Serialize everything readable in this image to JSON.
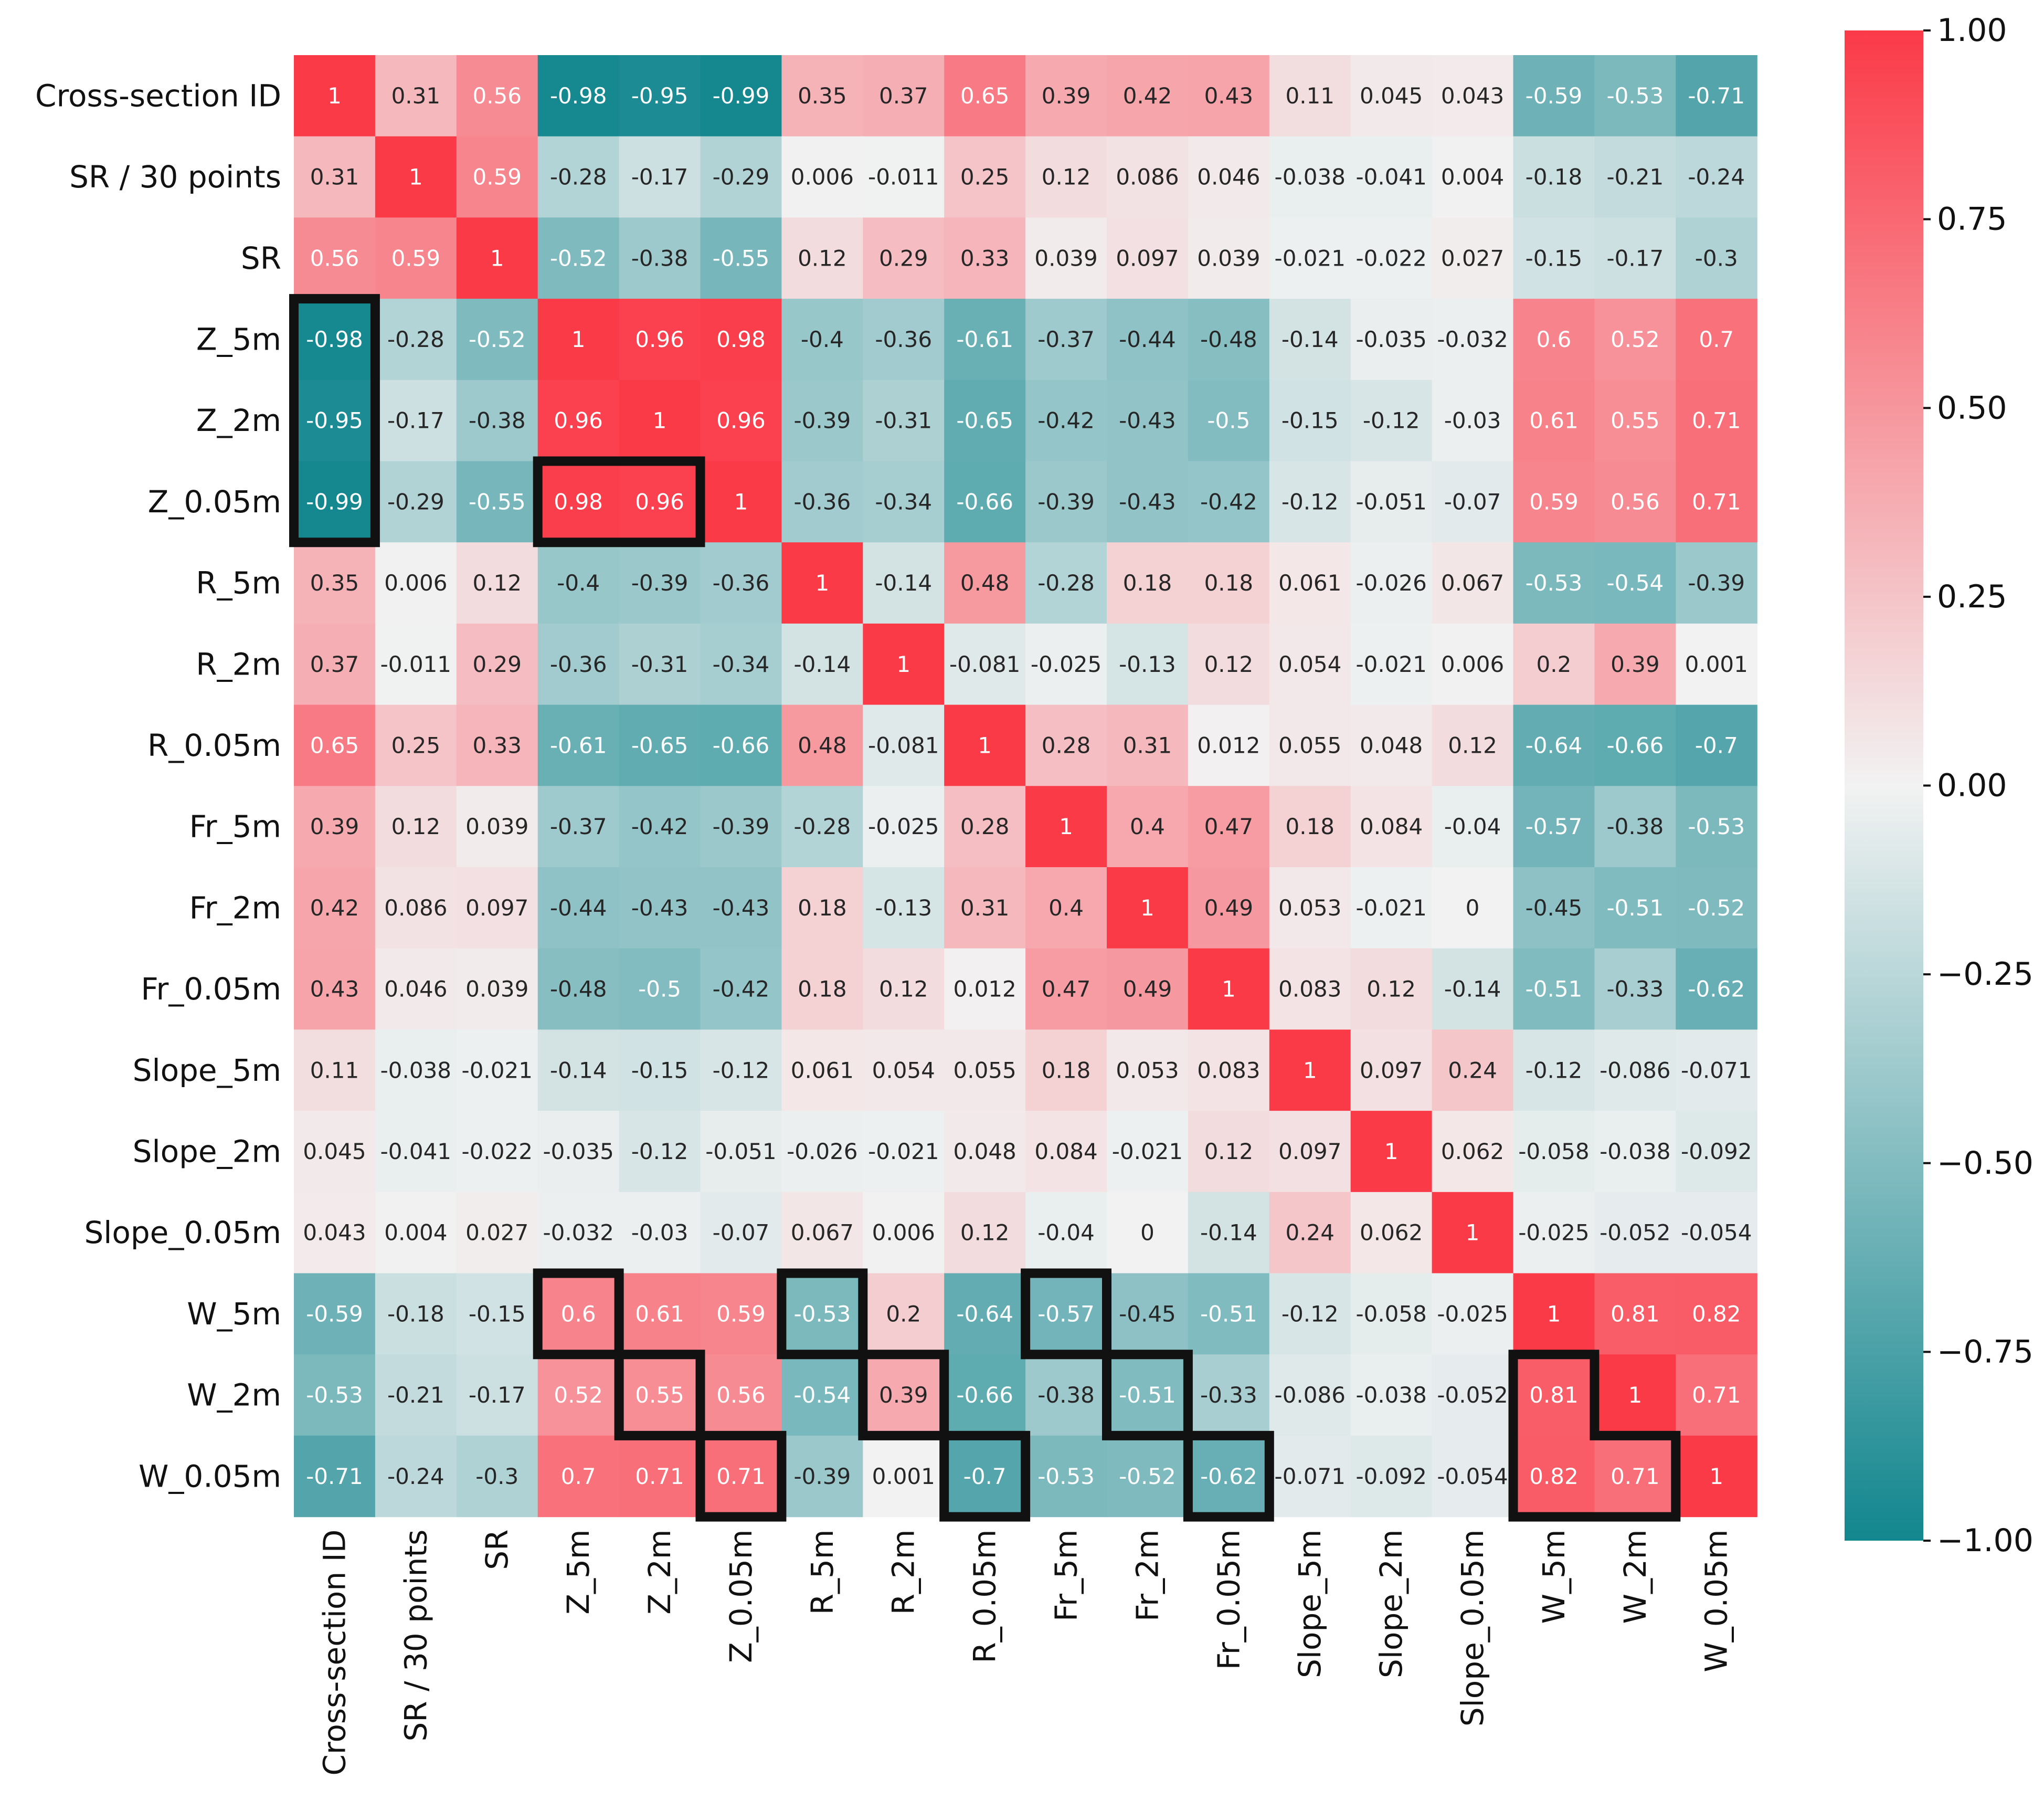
{
  "chart_data": {
    "type": "heatmap",
    "title": "",
    "labels": [
      "Cross-section ID",
      "SR / 30 points",
      "SR",
      "Z_5m",
      "Z_2m",
      "Z_0.05m",
      "R_5m",
      "R_2m",
      "R_0.05m",
      "Fr_5m",
      "Fr_2m",
      "Fr_0.05m",
      "Slope_5m",
      "Slope_2m",
      "Slope_0.05m",
      "W_5m",
      "W_2m",
      "W_0.05m"
    ],
    "value_labels": [
      [
        "1",
        "0.31",
        "0.56",
        "-0.98",
        "-0.95",
        "-0.99",
        "0.35",
        "0.37",
        "0.65",
        "0.39",
        "0.42",
        "0.43",
        "0.11",
        "0.045",
        "0.043",
        "-0.59",
        "-0.53",
        "-0.71"
      ],
      [
        "0.31",
        "1",
        "0.59",
        "-0.28",
        "-0.17",
        "-0.29",
        "0.006",
        "-0.011",
        "0.25",
        "0.12",
        "0.086",
        "0.046",
        "-0.038",
        "-0.041",
        "0.004",
        "-0.18",
        "-0.21",
        "-0.24"
      ],
      [
        "0.56",
        "0.59",
        "1",
        "-0.52",
        "-0.38",
        "-0.55",
        "0.12",
        "0.29",
        "0.33",
        "0.039",
        "0.097",
        "0.039",
        "-0.021",
        "-0.022",
        "0.027",
        "-0.15",
        "-0.17",
        "-0.3"
      ],
      [
        "-0.98",
        "-0.28",
        "-0.52",
        "1",
        "0.96",
        "0.98",
        "-0.4",
        "-0.36",
        "-0.61",
        "-0.37",
        "-0.44",
        "-0.48",
        "-0.14",
        "-0.035",
        "-0.032",
        "0.6",
        "0.52",
        "0.7"
      ],
      [
        "-0.95",
        "-0.17",
        "-0.38",
        "0.96",
        "1",
        "0.96",
        "-0.39",
        "-0.31",
        "-0.65",
        "-0.42",
        "-0.43",
        "-0.5",
        "-0.15",
        "-0.12",
        "-0.03",
        "0.61",
        "0.55",
        "0.71"
      ],
      [
        "-0.99",
        "-0.29",
        "-0.55",
        "0.98",
        "0.96",
        "1",
        "-0.36",
        "-0.34",
        "-0.66",
        "-0.39",
        "-0.43",
        "-0.42",
        "-0.12",
        "-0.051",
        "-0.07",
        "0.59",
        "0.56",
        "0.71"
      ],
      [
        "0.35",
        "0.006",
        "0.12",
        "-0.4",
        "-0.39",
        "-0.36",
        "1",
        "-0.14",
        "0.48",
        "-0.28",
        "0.18",
        "0.18",
        "0.061",
        "-0.026",
        "0.067",
        "-0.53",
        "-0.54",
        "-0.39"
      ],
      [
        "0.37",
        "-0.011",
        "0.29",
        "-0.36",
        "-0.31",
        "-0.34",
        "-0.14",
        "1",
        "-0.081",
        "-0.025",
        "-0.13",
        "0.12",
        "0.054",
        "-0.021",
        "0.006",
        "0.2",
        "0.39",
        "0.001"
      ],
      [
        "0.65",
        "0.25",
        "0.33",
        "-0.61",
        "-0.65",
        "-0.66",
        "0.48",
        "-0.081",
        "1",
        "0.28",
        "0.31",
        "0.012",
        "0.055",
        "0.048",
        "0.12",
        "-0.64",
        "-0.66",
        "-0.7"
      ],
      [
        "0.39",
        "0.12",
        "0.039",
        "-0.37",
        "-0.42",
        "-0.39",
        "-0.28",
        "-0.025",
        "0.28",
        "1",
        "0.4",
        "0.47",
        "0.18",
        "0.084",
        "-0.04",
        "-0.57",
        "-0.38",
        "-0.53"
      ],
      [
        "0.42",
        "0.086",
        "0.097",
        "-0.44",
        "-0.43",
        "-0.43",
        "0.18",
        "-0.13",
        "0.31",
        "0.4",
        "1",
        "0.49",
        "0.053",
        "-0.021",
        "0",
        "-0.45",
        "-0.51",
        "-0.52"
      ],
      [
        "0.43",
        "0.046",
        "0.039",
        "-0.48",
        "-0.5",
        "-0.42",
        "0.18",
        "0.12",
        "0.012",
        "0.47",
        "0.49",
        "1",
        "0.083",
        "0.12",
        "-0.14",
        "-0.51",
        "-0.33",
        "-0.62"
      ],
      [
        "0.11",
        "-0.038",
        "-0.021",
        "-0.14",
        "-0.15",
        "-0.12",
        "0.061",
        "0.054",
        "0.055",
        "0.18",
        "0.053",
        "0.083",
        "1",
        "0.097",
        "0.24",
        "-0.12",
        "-0.086",
        "-0.071"
      ],
      [
        "0.045",
        "-0.041",
        "-0.022",
        "-0.035",
        "-0.12",
        "-0.051",
        "-0.026",
        "-0.021",
        "0.048",
        "0.084",
        "-0.021",
        "0.12",
        "0.097",
        "1",
        "0.062",
        "-0.058",
        "-0.038",
        "-0.092"
      ],
      [
        "0.043",
        "0.004",
        "0.027",
        "-0.032",
        "-0.03",
        "-0.07",
        "0.067",
        "0.006",
        "0.12",
        "-0.04",
        "0",
        "-0.14",
        "0.24",
        "0.062",
        "1",
        "-0.025",
        "-0.052",
        "-0.054"
      ],
      [
        "-0.59",
        "-0.18",
        "-0.15",
        "0.6",
        "0.61",
        "0.59",
        "-0.53",
        "0.2",
        "-0.64",
        "-0.57",
        "-0.45",
        "-0.51",
        "-0.12",
        "-0.058",
        "-0.025",
        "1",
        "0.81",
        "0.82"
      ],
      [
        "-0.53",
        "-0.21",
        "-0.17",
        "0.52",
        "0.55",
        "0.56",
        "-0.54",
        "0.39",
        "-0.66",
        "-0.38",
        "-0.51",
        "-0.33",
        "-0.086",
        "-0.038",
        "-0.052",
        "0.81",
        "1",
        "0.71"
      ],
      [
        "-0.71",
        "-0.24",
        "-0.3",
        "0.7",
        "0.71",
        "0.71",
        "-0.39",
        "0.001",
        "-0.7",
        "-0.53",
        "-0.52",
        "-0.62",
        "-0.071",
        "-0.092",
        "-0.054",
        "0.82",
        "0.71",
        "1"
      ]
    ],
    "value_range": [
      -1,
      1
    ],
    "colormap": {
      "low": "#12868e",
      "mid": "#f2f2f2",
      "high": "#fb3a48"
    },
    "colorbar_ticks": [
      "1.00",
      "0.75",
      "0.50",
      "0.25",
      "0.00",
      "−0.25",
      "−0.50",
      "−0.75",
      "−1.00"
    ],
    "colorbar_values": [
      1.0,
      0.75,
      0.5,
      0.25,
      0.0,
      -0.25,
      -0.5,
      -0.75,
      -1.0
    ],
    "highlight_groups": [
      {
        "cells": [
          [
            3,
            0
          ],
          [
            4,
            0
          ],
          [
            5,
            0
          ]
        ]
      },
      {
        "cells": [
          [
            5,
            3
          ],
          [
            5,
            4
          ]
        ]
      },
      {
        "cells": [
          [
            15,
            3
          ]
        ]
      },
      {
        "cells": [
          [
            16,
            4
          ],
          [
            17,
            5
          ]
        ]
      },
      {
        "cells": [
          [
            15,
            6
          ]
        ]
      },
      {
        "cells": [
          [
            16,
            7
          ],
          [
            17,
            8
          ]
        ]
      },
      {
        "cells": [
          [
            15,
            9
          ]
        ]
      },
      {
        "cells": [
          [
            16,
            10
          ],
          [
            17,
            11
          ]
        ]
      },
      {
        "cells": [
          [
            16,
            15
          ],
          [
            17,
            15
          ],
          [
            17,
            16
          ]
        ]
      }
    ]
  }
}
